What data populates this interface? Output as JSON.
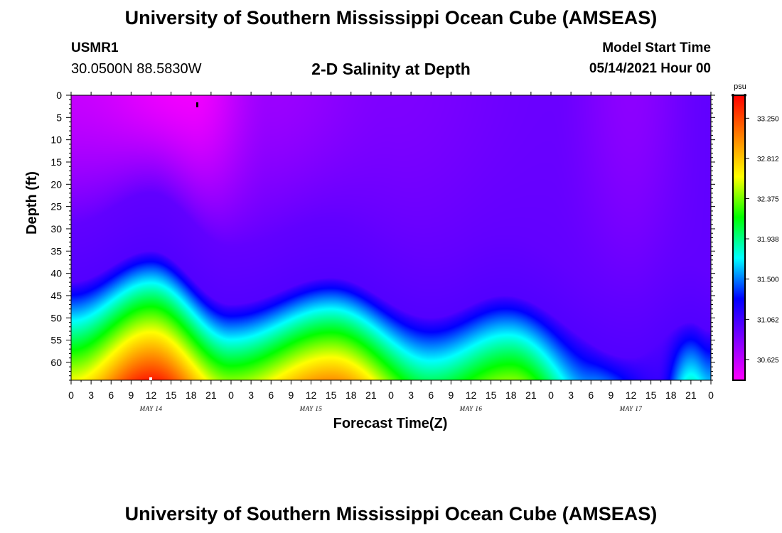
{
  "header": {
    "title": "University of Southern Mississippi Ocean Cube (AMSEAS)",
    "station": "USMR1",
    "coordinates": "30.0500N  88.5830W",
    "subtitle": "2-D Salinity at Depth",
    "model_start_label": "Model Start Time",
    "model_start_value": "05/14/2021 Hour 00"
  },
  "footer": {
    "title": "University of Southern Mississippi Ocean Cube (AMSEAS)"
  },
  "chart_data": {
    "type": "heatmap",
    "title": "2-D Salinity at Depth",
    "xlabel": "Forecast Time(Z)",
    "ylabel": "Depth (ft)",
    "x_range_hours": [
      0,
      96
    ],
    "x_tick_hours": [
      0,
      3,
      6,
      9,
      12,
      15,
      18,
      21,
      24,
      27,
      30,
      33,
      36,
      39,
      42,
      45,
      48,
      51,
      54,
      57,
      60,
      63,
      66,
      69,
      72,
      75,
      78,
      81,
      84,
      87,
      90,
      93,
      96
    ],
    "x_tick_labels": [
      "0",
      "3",
      "6",
      "9",
      "12",
      "15",
      "18",
      "21",
      "0",
      "3",
      "6",
      "9",
      "12",
      "15",
      "18",
      "21",
      "0",
      "3",
      "6",
      "9",
      "12",
      "15",
      "18",
      "21",
      "0",
      "3",
      "6",
      "9",
      "12",
      "15",
      "18",
      "21",
      "0"
    ],
    "date_labels": [
      {
        "hour": 12,
        "text": "MAY 14"
      },
      {
        "hour": 36,
        "text": "MAY 15"
      },
      {
        "hour": 60,
        "text": "MAY 16"
      },
      {
        "hour": 84,
        "text": "MAY 17"
      }
    ],
    "y_range_ft": [
      0,
      64
    ],
    "y_ticks": [
      0,
      5,
      10,
      15,
      20,
      25,
      30,
      35,
      40,
      45,
      50,
      55,
      60
    ],
    "y_tick_labels": [
      "0",
      "5",
      "10",
      "15",
      "20",
      "25",
      "30",
      "35",
      "40",
      "45",
      "50",
      "55",
      "60"
    ],
    "colorbar": {
      "unit": "psu",
      "range": [
        30.4,
        33.5
      ],
      "tick_values": [
        33.25,
        32.812,
        32.375,
        31.938,
        31.5,
        31.062,
        30.625
      ],
      "tick_labels": [
        "33.250",
        "32.812",
        "32.375",
        "31.938",
        "31.500",
        "31.062",
        "30.625"
      ],
      "colors": [
        "#ff00ff",
        "#8000ff",
        "#0000ff",
        "#00ffff",
        "#00ff00",
        "#ffff00",
        "#ff8000",
        "#ff0000"
      ]
    },
    "surface_salinity_psu_by_hour": [
      {
        "hour": 0,
        "psu": 30.6
      },
      {
        "hour": 18,
        "psu": 30.45
      },
      {
        "hour": 30,
        "psu": 30.75
      },
      {
        "hour": 48,
        "psu": 30.85
      },
      {
        "hour": 72,
        "psu": 30.92
      },
      {
        "hour": 84,
        "psu": 30.8
      },
      {
        "hour": 96,
        "psu": 30.95
      }
    ],
    "halocline_top_depth_ft_by_hour": [
      {
        "hour": 0,
        "depth": 47
      },
      {
        "hour": 12,
        "depth": 40
      },
      {
        "hour": 24,
        "depth": 52
      },
      {
        "hour": 39,
        "depth": 46
      },
      {
        "hour": 54,
        "depth": 55
      },
      {
        "hour": 65,
        "depth": 50
      },
      {
        "hour": 84,
        "depth": 64
      },
      {
        "hour": 93,
        "depth": 56
      },
      {
        "hour": 96,
        "depth": 58
      }
    ],
    "bottom_salinity_psu_by_hour": [
      {
        "hour": 0,
        "psu": 32.6
      },
      {
        "hour": 12,
        "psu": 33.4
      },
      {
        "hour": 24,
        "psu": 32.4
      },
      {
        "hour": 39,
        "psu": 33.0
      },
      {
        "hour": 54,
        "psu": 32.0
      },
      {
        "hour": 66,
        "psu": 32.4
      },
      {
        "hour": 78,
        "psu": 31.5
      },
      {
        "hour": 88,
        "psu": 31.1
      },
      {
        "hour": 93,
        "psu": 31.8
      },
      {
        "hour": 96,
        "psu": 31.6
      }
    ]
  }
}
